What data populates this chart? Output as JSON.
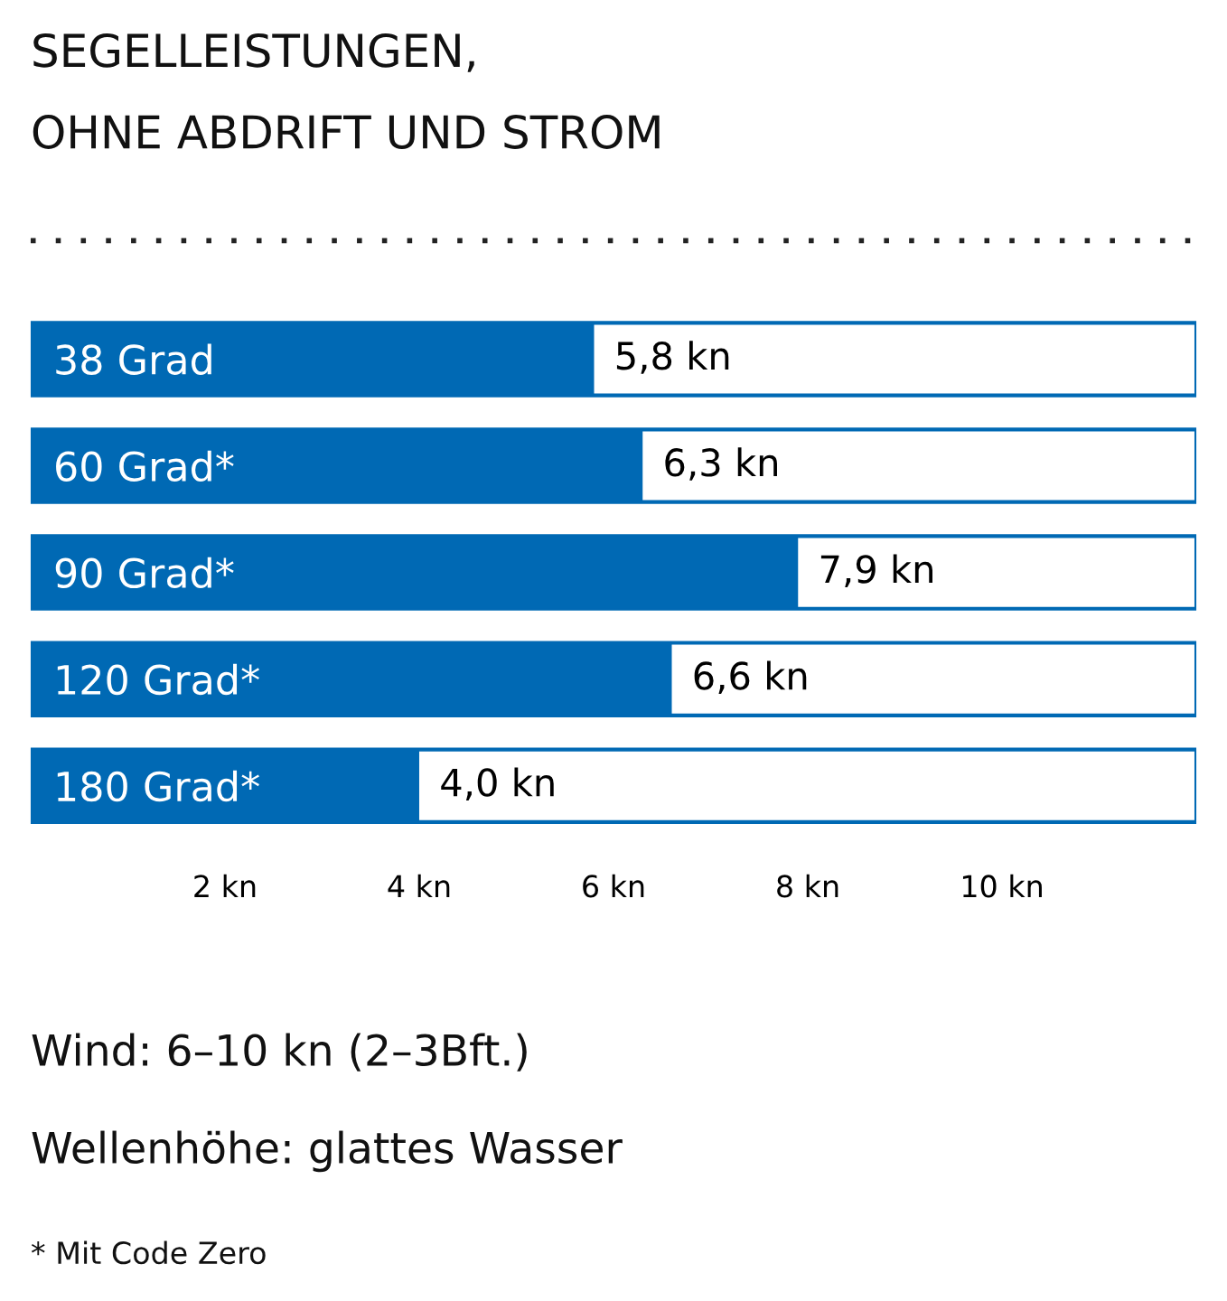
{
  "chart_data": {
    "type": "bar",
    "orientation": "horizontal",
    "title": "SEGELLEISTUNGEN,\nOHNE ABDRIFT UND STROM",
    "categories": [
      "38 Grad",
      "60 Grad*",
      "90 Grad*",
      "120 Grad*",
      "180 Grad*"
    ],
    "values": [
      5.8,
      6.3,
      7.9,
      6.6,
      4.0
    ],
    "value_labels": [
      "5,8 kn",
      "6,3 kn",
      "7,9 kn",
      "6,6 kn",
      "4,0 kn"
    ],
    "color": "#0069b4",
    "xlim": [
      0,
      12
    ],
    "xticks": [
      {
        "value": 2,
        "label": "2 kn"
      },
      {
        "value": 4,
        "label": "4 kn"
      },
      {
        "value": 6,
        "label": "6 kn"
      },
      {
        "value": 8,
        "label": "8 kn"
      },
      {
        "value": 10,
        "label": "10 kn"
      }
    ],
    "grid": false,
    "legend": false,
    "annotations": [
      "Wind: 6–10 kn (2–3Bft.)",
      "Wellenhöhe: glattes Wasser",
      "* Mit Code Zero"
    ]
  }
}
